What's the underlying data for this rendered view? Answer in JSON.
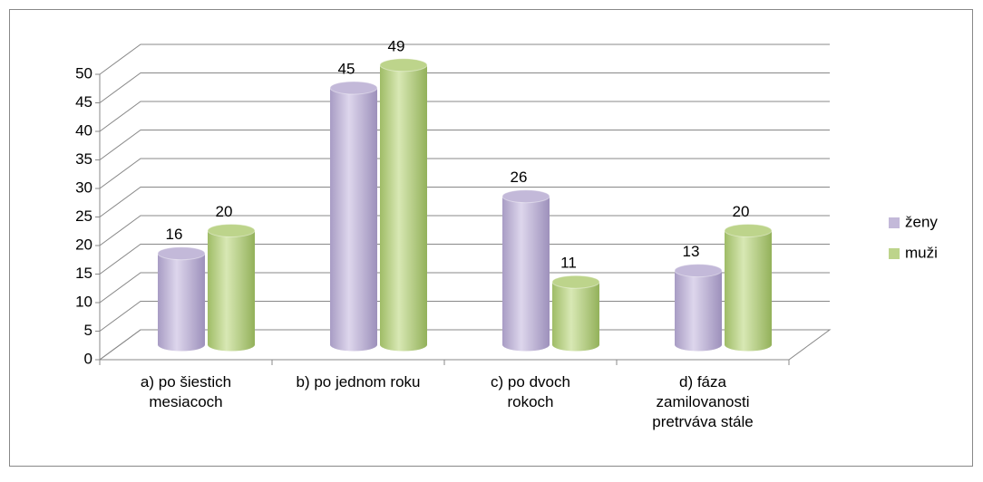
{
  "chart_data": {
    "type": "bar3d",
    "categories": [
      "a) po šiestich mesiacoch",
      "b) po jednom roku",
      "c) po dvoch rokoch",
      "d) fáza zamilovanosti pretrváva stále"
    ],
    "series": [
      {
        "name": "ženy",
        "color": "#c3b9d9",
        "values": [
          16,
          45,
          26,
          13
        ]
      },
      {
        "name": "muži",
        "color": "#bdd48b",
        "values": [
          20,
          49,
          11,
          20
        ]
      }
    ],
    "ylim": [
      0,
      50
    ],
    "yticks": [
      0,
      5,
      10,
      15,
      20,
      25,
      30,
      35,
      40,
      45,
      50
    ],
    "grid": true,
    "legend": "right"
  }
}
